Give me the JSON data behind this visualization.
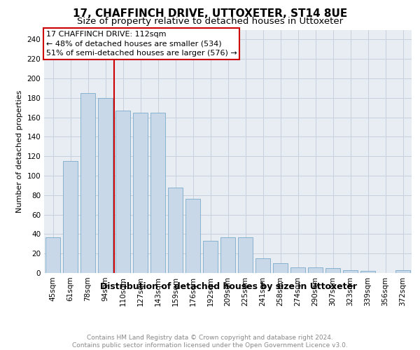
{
  "title1": "17, CHAFFINCH DRIVE, UTTOXETER, ST14 8UE",
  "title2": "Size of property relative to detached houses in Uttoxeter",
  "xlabel": "Distribution of detached houses by size in Uttoxeter",
  "ylabel": "Number of detached properties",
  "categories": [
    "45sqm",
    "61sqm",
    "78sqm",
    "94sqm",
    "110sqm",
    "127sqm",
    "143sqm",
    "159sqm",
    "176sqm",
    "192sqm",
    "209sqm",
    "225sqm",
    "241sqm",
    "258sqm",
    "274sqm",
    "290sqm",
    "307sqm",
    "323sqm",
    "339sqm",
    "356sqm",
    "372sqm"
  ],
  "values": [
    37,
    115,
    185,
    180,
    167,
    165,
    165,
    88,
    76,
    33,
    37,
    37,
    15,
    10,
    6,
    6,
    5,
    3,
    2,
    0,
    3
  ],
  "bar_color": "#c8d8e8",
  "bar_edge_color": "#7aaac8",
  "property_label": "17 CHAFFINCH DRIVE: 112sqm",
  "annotation_line1": "← 48% of detached houses are smaller (534)",
  "annotation_line2": "51% of semi-detached houses are larger (576) →",
  "vline_color": "#cc0000",
  "vline_bar_index": 3.5,
  "annotation_box_color": "#cc0000",
  "ylim": [
    0,
    250
  ],
  "yticks": [
    0,
    20,
    40,
    60,
    80,
    100,
    120,
    140,
    160,
    180,
    200,
    220,
    240
  ],
  "grid_color": "#c8d0dc",
  "background_color": "#e8edf4",
  "footer_line1": "Contains HM Land Registry data © Crown copyright and database right 2024.",
  "footer_line2": "Contains public sector information licensed under the Open Government Licence v3.0.",
  "title1_fontsize": 11,
  "title2_fontsize": 9.5,
  "xlabel_fontsize": 9,
  "ylabel_fontsize": 8,
  "tick_fontsize": 7.5,
  "annotation_fontsize": 8,
  "footer_fontsize": 6.5
}
